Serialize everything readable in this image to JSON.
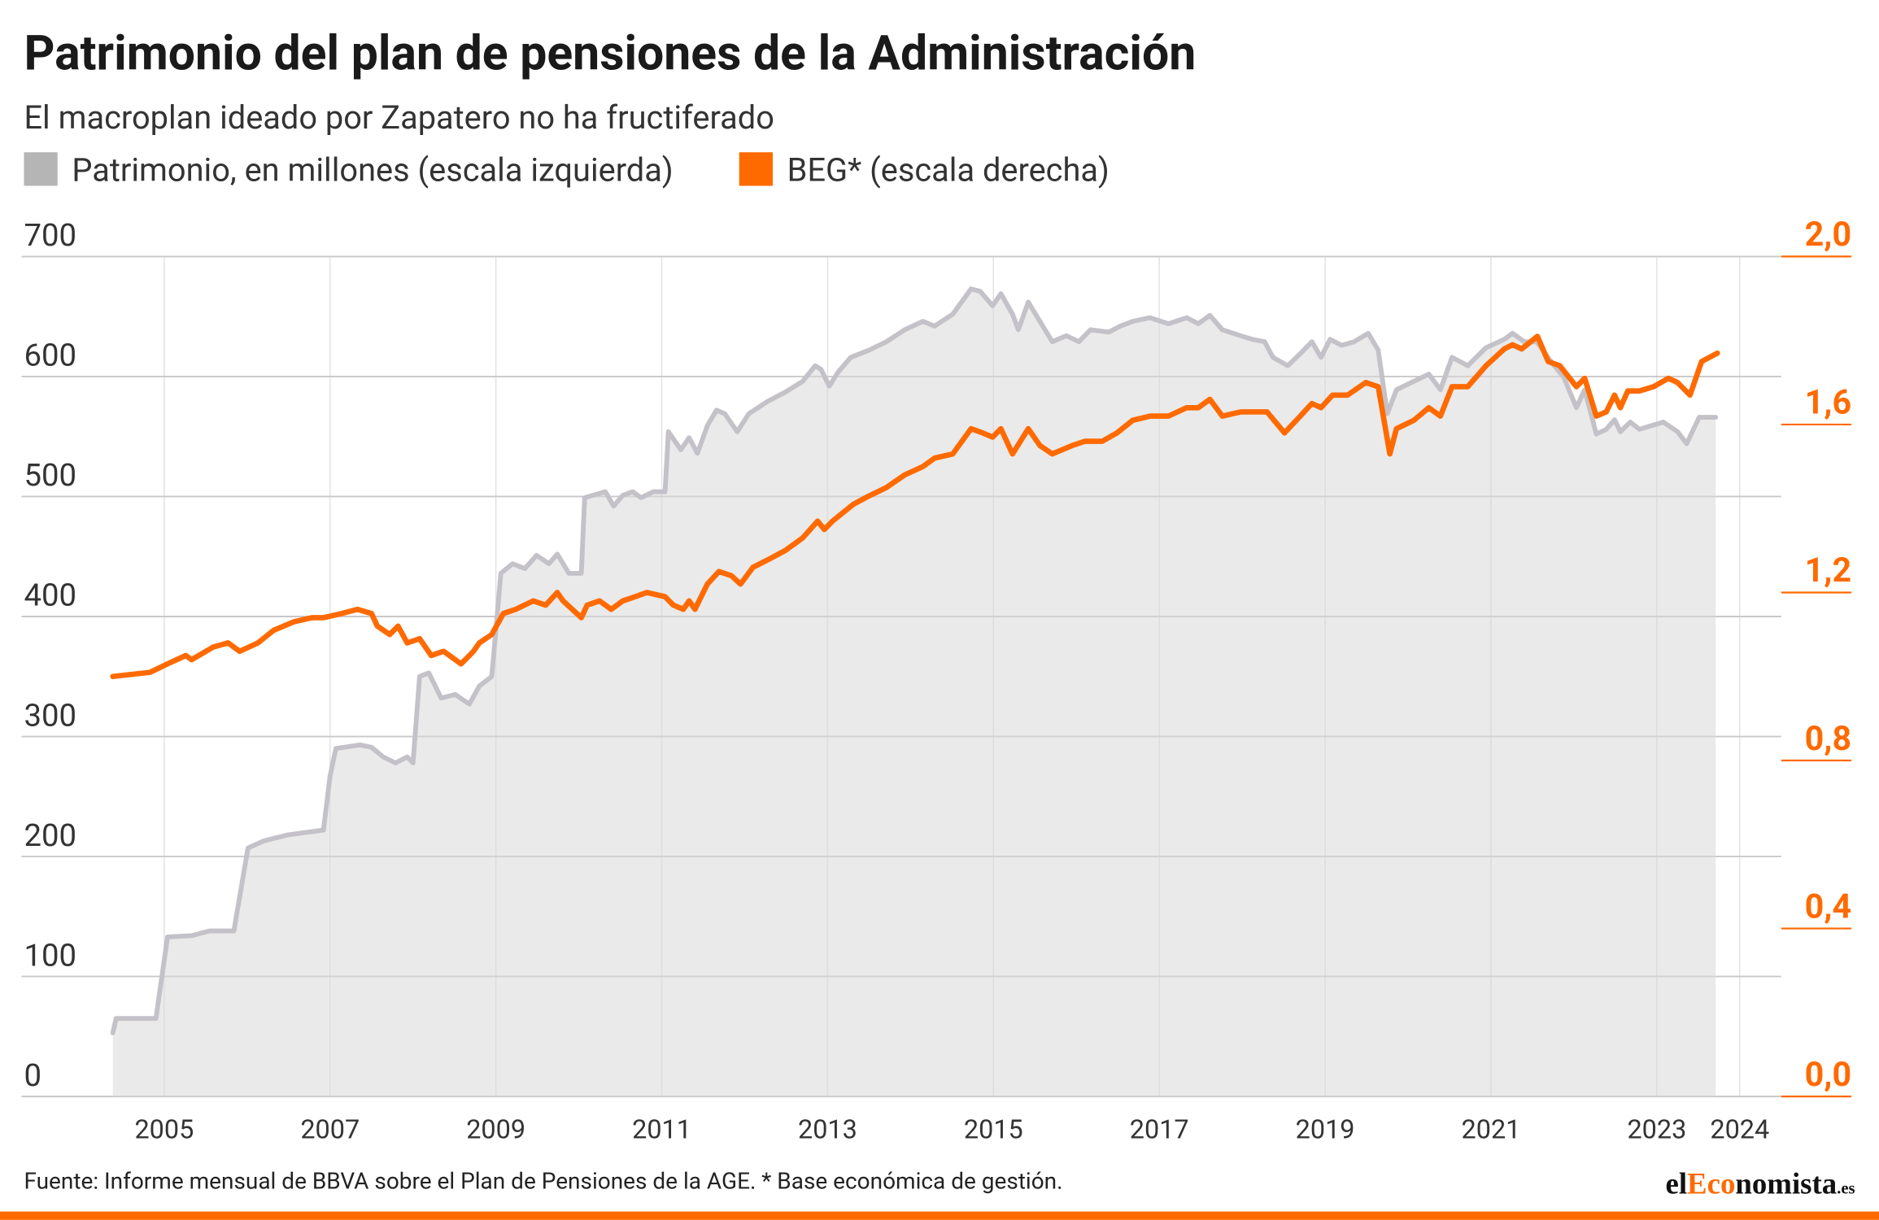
{
  "chart_data": {
    "type": "line",
    "title": "Patrimonio del plan de pensiones de la Administración",
    "subtitle": "El macroplan ideado por Zapatero no ha fructiferado",
    "source": "Fuente: Informe mensual de BBVA sobre el Plan de Pensiones de la AGE. * Base económica de gestión.",
    "logo": [
      "el",
      "Eco",
      "nomista",
      ".es"
    ],
    "xlim": [
      2004.3,
      2024.5
    ],
    "xticks": [
      2005,
      2007,
      2009,
      2011,
      2013,
      2015,
      2017,
      2019,
      2021,
      2023,
      2024
    ],
    "ylim": [
      0,
      700
    ],
    "yticks": [
      0,
      100,
      200,
      300,
      400,
      500,
      600,
      700
    ],
    "y2lim": [
      0,
      2
    ],
    "y2ticks": [
      {
        "value": 0,
        "label": "0,0"
      },
      {
        "value": 0.4,
        "label": "0,4"
      },
      {
        "value": 0.8,
        "label": "0,8"
      },
      {
        "value": 1.2,
        "label": "1,2"
      },
      {
        "value": 1.6,
        "label": "1,6"
      },
      {
        "value": 2,
        "label": "2,0"
      }
    ],
    "grid": true,
    "legend": "top-left",
    "series": [
      {
        "name": "Patrimonio, en millones (escala izquierda)",
        "color": "#c4c2c8",
        "area": true,
        "x": [
          2004.38,
          2004.42,
          2004.9,
          2005.04,
          2005.33,
          2005.55,
          2005.84,
          2006.01,
          2006.2,
          2006.49,
          2006.92,
          2007.0,
          2007.07,
          2007.36,
          2007.5,
          2007.64,
          2007.79,
          2007.93,
          2008.0,
          2008.08,
          2008.19,
          2008.34,
          2008.51,
          2008.68,
          2008.8,
          2008.95,
          2009.06,
          2009.2,
          2009.35,
          2009.49,
          2009.64,
          2009.74,
          2009.88,
          2010.03,
          2010.07,
          2010.32,
          2010.42,
          2010.53,
          2010.65,
          2010.75,
          2010.9,
          2011.04,
          2011.08,
          2011.23,
          2011.33,
          2011.43,
          2011.55,
          2011.66,
          2011.76,
          2011.91,
          2012.05,
          2012.27,
          2012.49,
          2012.7,
          2012.85,
          2012.92,
          2013.02,
          2013.13,
          2013.28,
          2013.5,
          2013.71,
          2013.93,
          2014.15,
          2014.29,
          2014.51,
          2014.73,
          2014.84,
          2014.99,
          2015.09,
          2015.23,
          2015.3,
          2015.42,
          2015.56,
          2015.71,
          2015.88,
          2016.03,
          2016.17,
          2016.39,
          2016.53,
          2016.68,
          2016.89,
          2017.11,
          2017.33,
          2017.47,
          2017.61,
          2017.76,
          2017.98,
          2018.12,
          2018.27,
          2018.37,
          2018.55,
          2018.7,
          2018.84,
          2018.95,
          2019.06,
          2019.2,
          2019.35,
          2019.52,
          2019.64,
          2019.75,
          2019.86,
          2020.07,
          2020.25,
          2020.39,
          2020.53,
          2020.72,
          2020.94,
          2021.16,
          2021.26,
          2021.4,
          2021.55,
          2021.73,
          2021.88,
          2022.03,
          2022.13,
          2022.27,
          2022.39,
          2022.49,
          2022.56,
          2022.68,
          2022.79,
          2022.93,
          2023.08,
          2023.25,
          2023.36,
          2023.51,
          2023.71
        ],
        "values": [
          53,
          65,
          65,
          133,
          134,
          138,
          138,
          207,
          213,
          218,
          222,
          267,
          290,
          293,
          291,
          283,
          278,
          283,
          278,
          350,
          353,
          332,
          335,
          327,
          342,
          350,
          436,
          444,
          440,
          451,
          444,
          452,
          436,
          436,
          499,
          504,
          492,
          501,
          504,
          499,
          504,
          504,
          554,
          539,
          549,
          536,
          559,
          572,
          569,
          554,
          569,
          579,
          587,
          596,
          609,
          606,
          592,
          604,
          616,
          622,
          629,
          639,
          646,
          642,
          652,
          673,
          671,
          659,
          669,
          652,
          639,
          662,
          646,
          629,
          634,
          629,
          639,
          637,
          642,
          646,
          649,
          644,
          649,
          644,
          651,
          639,
          634,
          631,
          629,
          616,
          609,
          619,
          629,
          616,
          631,
          626,
          629,
          636,
          622,
          569,
          589,
          596,
          602,
          589,
          616,
          609,
          624,
          631,
          636,
          629,
          629,
          612,
          599,
          574,
          589,
          552,
          556,
          564,
          554,
          562,
          556,
          559,
          562,
          554,
          544,
          566,
          566
        ]
      },
      {
        "name": "BEG* (escala derecha)",
        "color": "#ff6a00",
        "axis": "y2",
        "x": [
          2004.38,
          2004.83,
          2005.04,
          2005.26,
          2005.33,
          2005.59,
          2005.77,
          2005.91,
          2006.13,
          2006.32,
          2006.56,
          2006.78,
          2006.92,
          2007.14,
          2007.33,
          2007.5,
          2007.57,
          2007.72,
          2007.82,
          2007.93,
          2008.08,
          2008.22,
          2008.37,
          2008.58,
          2008.73,
          2008.8,
          2008.95,
          2009.09,
          2009.24,
          2009.45,
          2009.6,
          2009.74,
          2009.81,
          2010.03,
          2010.1,
          2010.25,
          2010.39,
          2010.53,
          2010.68,
          2010.82,
          2011.04,
          2011.14,
          2011.26,
          2011.33,
          2011.4,
          2011.55,
          2011.69,
          2011.84,
          2011.95,
          2012.1,
          2012.3,
          2012.49,
          2012.7,
          2012.88,
          2012.96,
          2013.06,
          2013.31,
          2013.5,
          2013.71,
          2013.93,
          2014.15,
          2014.29,
          2014.51,
          2014.73,
          2014.87,
          2014.99,
          2015.09,
          2015.23,
          2015.42,
          2015.56,
          2015.71,
          2015.95,
          2016.1,
          2016.31,
          2016.49,
          2016.68,
          2016.89,
          2017.11,
          2017.33,
          2017.47,
          2017.61,
          2017.76,
          2017.98,
          2018.12,
          2018.3,
          2018.51,
          2018.7,
          2018.84,
          2018.95,
          2019.09,
          2019.27,
          2019.49,
          2019.64,
          2019.78,
          2019.86,
          2020.07,
          2020.25,
          2020.39,
          2020.53,
          2020.72,
          2020.94,
          2021.16,
          2021.26,
          2021.37,
          2021.56,
          2021.69,
          2021.83,
          2022.03,
          2022.13,
          2022.27,
          2022.39,
          2022.49,
          2022.56,
          2022.65,
          2022.79,
          2022.96,
          2023.14,
          2023.25,
          2023.4,
          2023.54,
          2023.73
        ],
        "values": [
          1.0,
          1.01,
          1.03,
          1.05,
          1.04,
          1.07,
          1.08,
          1.06,
          1.08,
          1.11,
          1.13,
          1.14,
          1.14,
          1.15,
          1.16,
          1.15,
          1.12,
          1.1,
          1.12,
          1.08,
          1.09,
          1.05,
          1.06,
          1.03,
          1.06,
          1.08,
          1.1,
          1.15,
          1.16,
          1.18,
          1.17,
          1.2,
          1.18,
          1.14,
          1.17,
          1.18,
          1.16,
          1.18,
          1.19,
          1.2,
          1.19,
          1.17,
          1.16,
          1.18,
          1.16,
          1.22,
          1.25,
          1.24,
          1.22,
          1.26,
          1.28,
          1.3,
          1.33,
          1.37,
          1.35,
          1.37,
          1.41,
          1.43,
          1.45,
          1.48,
          1.5,
          1.52,
          1.53,
          1.59,
          1.58,
          1.57,
          1.59,
          1.53,
          1.59,
          1.55,
          1.53,
          1.55,
          1.56,
          1.56,
          1.58,
          1.61,
          1.62,
          1.62,
          1.64,
          1.64,
          1.66,
          1.62,
          1.63,
          1.63,
          1.63,
          1.58,
          1.62,
          1.65,
          1.64,
          1.67,
          1.67,
          1.7,
          1.69,
          1.53,
          1.59,
          1.61,
          1.64,
          1.62,
          1.69,
          1.69,
          1.74,
          1.78,
          1.79,
          1.78,
          1.81,
          1.75,
          1.74,
          1.69,
          1.71,
          1.62,
          1.63,
          1.67,
          1.64,
          1.68,
          1.68,
          1.69,
          1.71,
          1.7,
          1.67,
          1.75,
          1.77
        ]
      }
    ]
  }
}
